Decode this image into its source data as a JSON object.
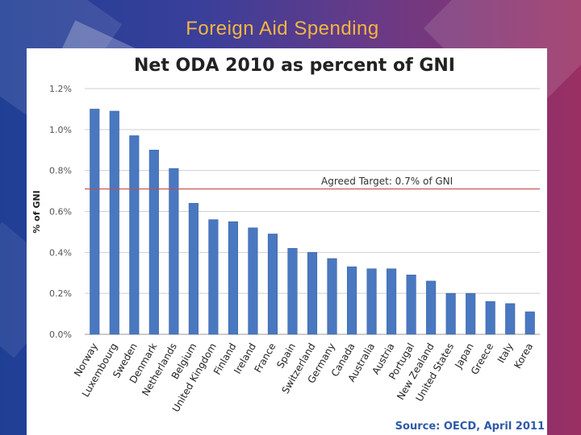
{
  "slide": {
    "title": "Foreign Aid Spending"
  },
  "chart_data": {
    "type": "bar",
    "title": "Net ODA 2010 as percent of GNI",
    "xlabel": "",
    "ylabel": "% of GNI",
    "ylim": [
      0,
      1.2
    ],
    "yticks": [
      "0.0%",
      "0.2%",
      "0.4%",
      "0.6%",
      "0.8%",
      "1.0%",
      "1.2%"
    ],
    "ytick_values": [
      0,
      0.2,
      0.4,
      0.6,
      0.8,
      1.0,
      1.2
    ],
    "categories": [
      "Norway",
      "Luxembourg",
      "Sweden",
      "Denmark",
      "Netherlands",
      "Belgium",
      "United Kingdom",
      "Finland",
      "Ireland",
      "France",
      "Spain",
      "Switzerland",
      "Germany",
      "Canada",
      "Australia",
      "Austria",
      "Portugal",
      "New Zealand",
      "United States",
      "Japan",
      "Greece",
      "Italy",
      "Korea"
    ],
    "values": [
      1.1,
      1.09,
      0.97,
      0.9,
      0.81,
      0.64,
      0.56,
      0.55,
      0.52,
      0.49,
      0.42,
      0.4,
      0.37,
      0.33,
      0.32,
      0.32,
      0.29,
      0.26,
      0.2,
      0.2,
      0.16,
      0.15,
      0.11
    ],
    "bar_color": "#4a78c0",
    "target": {
      "value": 0.71,
      "label": "Agreed Target: 0.7% of GNI",
      "color": "#c0504d"
    },
    "grid": true,
    "source": "Source: OECD, April 2011"
  }
}
